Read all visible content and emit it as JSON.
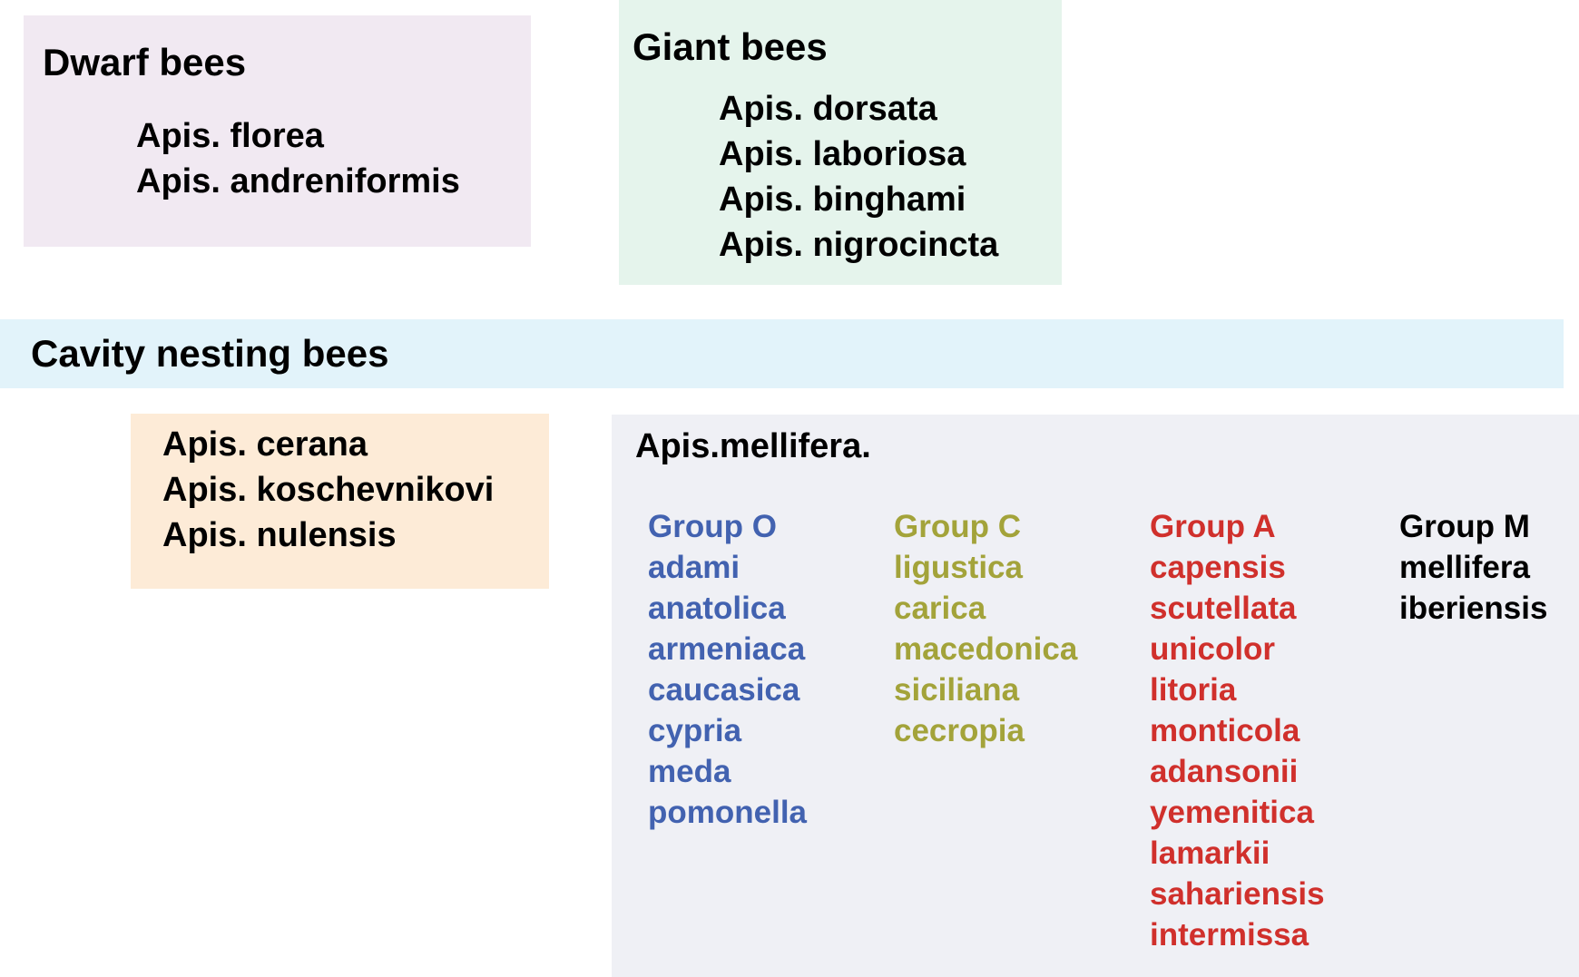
{
  "dwarf": {
    "title": "Dwarf bees",
    "species": [
      "Apis. florea",
      "Apis. andreniformis"
    ],
    "color": "#f1e9f2"
  },
  "giant": {
    "title": "Giant bees",
    "species": [
      "Apis. dorsata",
      "Apis. laboriosa",
      "Apis. binghami",
      "Apis. nigrocincta"
    ],
    "color": "#e5f4ec"
  },
  "cavity": {
    "title": "Cavity nesting bees",
    "color": "#e2f3fa"
  },
  "cerana": {
    "species": [
      "Apis. cerana",
      "Apis. koschevnikovi",
      "Apis. nulensis"
    ],
    "color": "#fdebd7"
  },
  "mellifera": {
    "title": "Apis.mellifera.",
    "color": "#eff0f5",
    "groups": [
      {
        "name": "Group O",
        "color": "#4262b0",
        "items": [
          "adami",
          "anatolica",
          "armeniaca",
          "caucasica",
          "cypria",
          "meda",
          "pomonella"
        ]
      },
      {
        "name": "Group C",
        "color": "#a3a33a",
        "items": [
          "ligustica",
          "carica",
          "macedonica",
          "siciliana",
          "cecropia"
        ]
      },
      {
        "name": "Group A",
        "color": "#d0302c",
        "items": [
          "capensis",
          "scutellata",
          "unicolor",
          "litoria",
          "monticola",
          "adansonii",
          "yemenitica",
          "lamarkii",
          "sahariensis",
          "intermissa"
        ]
      },
      {
        "name": "Group M",
        "color": "#000000",
        "items": [
          "mellifera",
          "iberiensis"
        ]
      }
    ]
  }
}
